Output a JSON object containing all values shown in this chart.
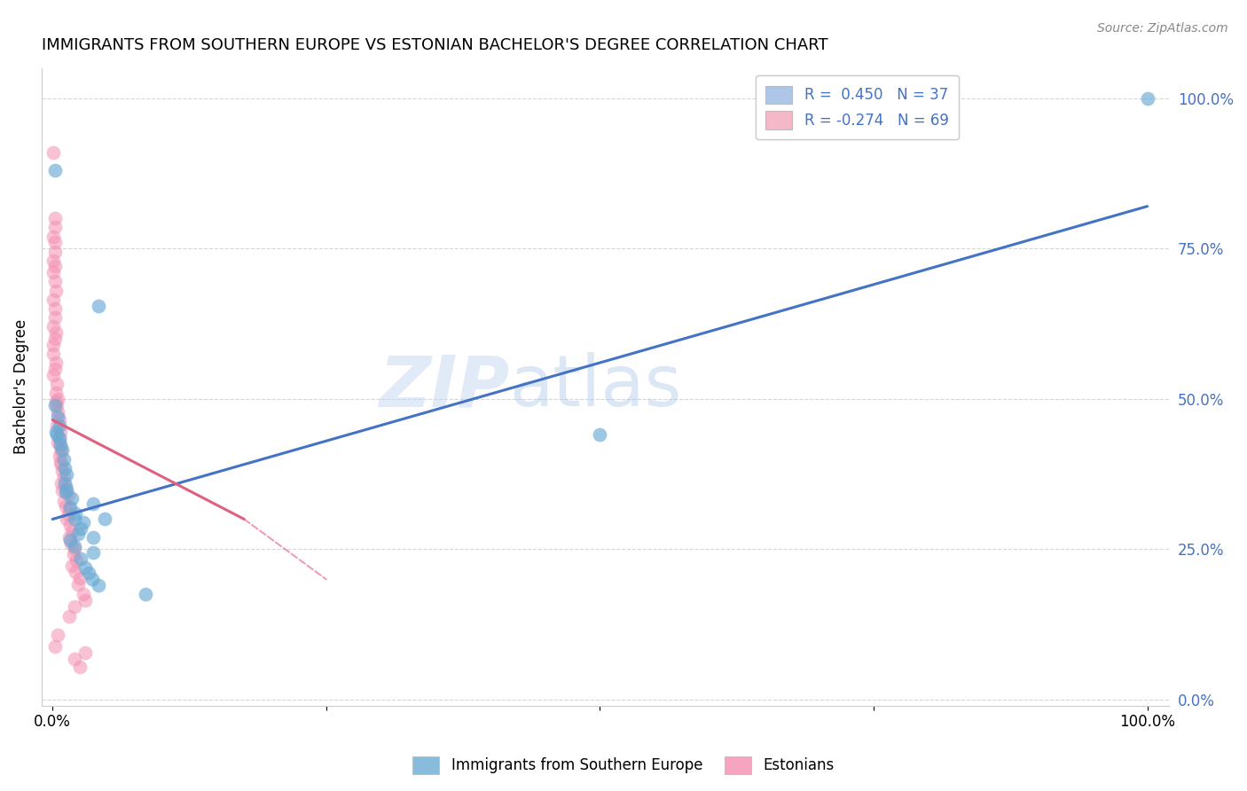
{
  "title": "IMMIGRANTS FROM SOUTHERN EUROPE VS ESTONIAN BACHELOR'S DEGREE CORRELATION CHART",
  "source": "Source: ZipAtlas.com",
  "ylabel": "Bachelor's Degree",
  "ytick_labels": [
    "0.0%",
    "25.0%",
    "50.0%",
    "75.0%",
    "100.0%"
  ],
  "ytick_values": [
    0.0,
    0.25,
    0.5,
    0.75,
    1.0
  ],
  "xtick_labels": [
    "0.0%",
    "",
    "",
    "",
    "100.0%"
  ],
  "xtick_values": [
    0.0,
    0.25,
    0.5,
    0.75,
    1.0
  ],
  "xlim": [
    -0.01,
    1.02
  ],
  "ylim": [
    -0.01,
    1.05
  ],
  "legend_entries": [
    {
      "label": "R =  0.450   N = 37",
      "color": "#aec6e8"
    },
    {
      "label": "R = -0.274   N = 69",
      "color": "#f4b8c8"
    }
  ],
  "legend_bottom": [
    "Immigrants from Southern Europe",
    "Estonians"
  ],
  "blue_color": "#6aaad4",
  "pink_color": "#f48fb1",
  "blue_line_color": "#4472c4",
  "pink_line_color": "#e06080",
  "watermark_left": "ZIP",
  "watermark_right": "atlas",
  "background_color": "#ffffff",
  "blue_scatter": [
    [
      0.002,
      0.88
    ],
    [
      0.042,
      0.655
    ],
    [
      0.002,
      0.49
    ],
    [
      0.005,
      0.47
    ],
    [
      0.006,
      0.455
    ],
    [
      0.003,
      0.445
    ],
    [
      0.004,
      0.44
    ],
    [
      0.006,
      0.435
    ],
    [
      0.007,
      0.425
    ],
    [
      0.009,
      0.415
    ],
    [
      0.01,
      0.4
    ],
    [
      0.011,
      0.385
    ],
    [
      0.013,
      0.375
    ],
    [
      0.011,
      0.36
    ],
    [
      0.013,
      0.35
    ],
    [
      0.012,
      0.345
    ],
    [
      0.018,
      0.335
    ],
    [
      0.037,
      0.325
    ],
    [
      0.016,
      0.32
    ],
    [
      0.021,
      0.31
    ],
    [
      0.02,
      0.3
    ],
    [
      0.028,
      0.295
    ],
    [
      0.026,
      0.285
    ],
    [
      0.023,
      0.275
    ],
    [
      0.037,
      0.27
    ],
    [
      0.016,
      0.265
    ],
    [
      0.02,
      0.255
    ],
    [
      0.037,
      0.245
    ],
    [
      0.026,
      0.235
    ],
    [
      0.03,
      0.22
    ],
    [
      0.033,
      0.21
    ],
    [
      0.036,
      0.2
    ],
    [
      0.042,
      0.19
    ],
    [
      0.085,
      0.175
    ],
    [
      0.5,
      0.44
    ],
    [
      0.048,
      0.3
    ],
    [
      1.0,
      1.0
    ]
  ],
  "pink_scatter": [
    [
      0.001,
      0.91
    ],
    [
      0.002,
      0.8
    ],
    [
      0.002,
      0.785
    ],
    [
      0.001,
      0.77
    ],
    [
      0.002,
      0.76
    ],
    [
      0.002,
      0.745
    ],
    [
      0.001,
      0.73
    ],
    [
      0.002,
      0.72
    ],
    [
      0.001,
      0.71
    ],
    [
      0.002,
      0.695
    ],
    [
      0.003,
      0.68
    ],
    [
      0.001,
      0.665
    ],
    [
      0.002,
      0.65
    ],
    [
      0.002,
      0.635
    ],
    [
      0.001,
      0.62
    ],
    [
      0.003,
      0.61
    ],
    [
      0.002,
      0.6
    ],
    [
      0.001,
      0.59
    ],
    [
      0.001,
      0.575
    ],
    [
      0.003,
      0.56
    ],
    [
      0.002,
      0.55
    ],
    [
      0.001,
      0.54
    ],
    [
      0.004,
      0.525
    ],
    [
      0.003,
      0.51
    ],
    [
      0.005,
      0.5
    ],
    [
      0.003,
      0.495
    ],
    [
      0.004,
      0.488
    ],
    [
      0.005,
      0.478
    ],
    [
      0.006,
      0.465
    ],
    [
      0.004,
      0.455
    ],
    [
      0.007,
      0.445
    ],
    [
      0.006,
      0.435
    ],
    [
      0.005,
      0.428
    ],
    [
      0.007,
      0.42
    ],
    [
      0.008,
      0.412
    ],
    [
      0.006,
      0.405
    ],
    [
      0.007,
      0.395
    ],
    [
      0.008,
      0.39
    ],
    [
      0.009,
      0.38
    ],
    [
      0.01,
      0.37
    ],
    [
      0.008,
      0.36
    ],
    [
      0.012,
      0.355
    ],
    [
      0.009,
      0.348
    ],
    [
      0.014,
      0.34
    ],
    [
      0.01,
      0.33
    ],
    [
      0.012,
      0.322
    ],
    [
      0.015,
      0.318
    ],
    [
      0.014,
      0.308
    ],
    [
      0.013,
      0.3
    ],
    [
      0.016,
      0.29
    ],
    [
      0.018,
      0.28
    ],
    [
      0.015,
      0.27
    ],
    [
      0.017,
      0.26
    ],
    [
      0.02,
      0.25
    ],
    [
      0.019,
      0.242
    ],
    [
      0.022,
      0.232
    ],
    [
      0.018,
      0.222
    ],
    [
      0.021,
      0.212
    ],
    [
      0.025,
      0.202
    ],
    [
      0.023,
      0.192
    ],
    [
      0.028,
      0.175
    ],
    [
      0.03,
      0.165
    ],
    [
      0.02,
      0.155
    ],
    [
      0.015,
      0.138
    ],
    [
      0.005,
      0.108
    ],
    [
      0.002,
      0.088
    ],
    [
      0.03,
      0.078
    ],
    [
      0.02,
      0.068
    ],
    [
      0.025,
      0.055
    ]
  ],
  "blue_line": {
    "x0": 0.0,
    "y0": 0.3,
    "x1": 1.0,
    "y1": 0.82
  },
  "pink_line": {
    "x0": 0.0,
    "y0": 0.465,
    "x1": 0.175,
    "y1": 0.3
  }
}
